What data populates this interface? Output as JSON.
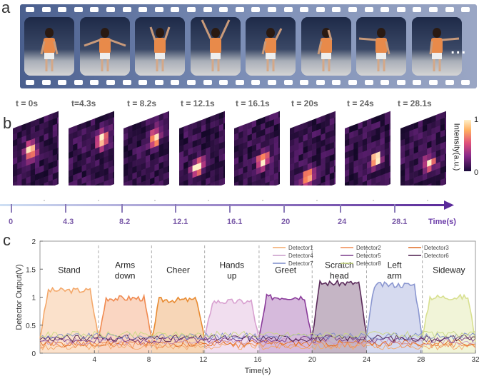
{
  "panel_a": {
    "letter": "a",
    "ellipsis": "..."
  },
  "panel_b": {
    "letter": "b",
    "time_labels": [
      "t = 0s",
      "t=4.3s",
      "t = 8.2s",
      "t = 12.1s",
      "t = 16.1s",
      "t = 20s",
      "t = 24s",
      "t = 28.1s"
    ],
    "colorbar_max": "1",
    "colorbar_min": "0",
    "colorbar_title": "Intensity(a.u.)",
    "axis_ticks": [
      "0",
      "4.3",
      "8.2",
      "12.1",
      "16.1",
      "20",
      "24",
      "28.1"
    ],
    "axis_label": "Time(s)"
  },
  "panel_c": {
    "letter": "c"
  },
  "chart_data": {
    "type": "area",
    "xlabel": "Time(s)",
    "ylabel": "Detector Output(V)",
    "xlim": [
      0,
      32
    ],
    "ylim": [
      0,
      2
    ],
    "xticks": [
      4,
      8,
      12,
      16,
      20,
      24,
      28,
      32
    ],
    "yticks": [
      0,
      0.5,
      1,
      1.5,
      2
    ],
    "ytick_labels": [
      "0",
      "0.5",
      "1",
      "1.5",
      "2"
    ],
    "legend": [
      "Detector1",
      "Detector2",
      "Detector3",
      "Detector4",
      "Detector5",
      "Detector6",
      "Detector7",
      "Detector8"
    ],
    "colors": [
      "#f4a86a",
      "#f08a50",
      "#e06a20",
      "#c89ac8",
      "#7a3a8a",
      "#4a1a4a",
      "#7a8ac8",
      "#c8d880"
    ],
    "segments": [
      {
        "label": "Stand",
        "start": 0,
        "end": 4.3,
        "level": 1.12,
        "color": "#f4a86a"
      },
      {
        "label": "Arms\ndown",
        "start": 4.3,
        "end": 8.2,
        "level": 0.98,
        "color": "#f08a50"
      },
      {
        "label": "Cheer",
        "start": 8.2,
        "end": 12.1,
        "level": 0.95,
        "color": "#e88a30"
      },
      {
        "label": "Hands\nup",
        "start": 12.1,
        "end": 16.1,
        "level": 0.92,
        "color": "#d8a0d0"
      },
      {
        "label": "Greet",
        "start": 16.1,
        "end": 20,
        "level": 1.0,
        "color": "#8a3a9a"
      },
      {
        "label": "Scratch\nhead",
        "start": 20,
        "end": 24,
        "level": 1.25,
        "color": "#5a2a5a"
      },
      {
        "label": "Left\narm",
        "start": 24,
        "end": 28.1,
        "level": 1.22,
        "color": "#8a96d0"
      },
      {
        "label": "Sideway",
        "start": 28.1,
        "end": 32,
        "level": 1.0,
        "color": "#d8e090"
      }
    ]
  }
}
